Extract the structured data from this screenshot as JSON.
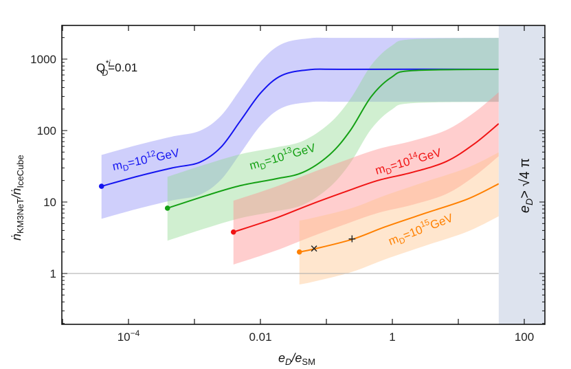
{
  "chart_data": {
    "type": "line",
    "xlabel": {
      "main": "e",
      "sub1": "D",
      "slash": "/e",
      "sub2": "SM"
    },
    "ylabel": {
      "main": "ṅ",
      "sub1": "KM3NeT",
      "slash": "/ṅ",
      "sub2": "IceCube"
    },
    "x_scale": "log",
    "y_scale": "log",
    "xlim": [
      9.8e-06,
      205
    ],
    "ylim": [
      0.195,
      2950
    ],
    "x_ticks": [
      {
        "v": 0.0001,
        "label": "10",
        "exp": "−4"
      },
      {
        "v": 0.01,
        "label": "0.01"
      },
      {
        "v": 1,
        "label": "1"
      },
      {
        "v": 100,
        "label": "100"
      }
    ],
    "y_ticks": [
      {
        "v": 1,
        "label": "1"
      },
      {
        "v": 10,
        "label": "10"
      },
      {
        "v": 100,
        "label": "100"
      },
      {
        "v": 1000,
        "label": "1000"
      }
    ],
    "annotation": {
      "Q": "Q",
      "sub": "D",
      "sup": "*i",
      "value": "=0.01"
    },
    "excluded_region": {
      "x_min": 41,
      "label_main": "e",
      "label_sub": "D",
      "label_rest": "> √4 π",
      "color": "#dde3ee"
    },
    "reference_line": {
      "y": 1,
      "color": "#aaaaaa"
    },
    "series": [
      {
        "name_parts": {
          "m": "m",
          "sub": "D",
          "base": "=10",
          "exp": "12",
          "unit": "GeV"
        },
        "color": "#1414f0",
        "band_color": "#8c8cf5",
        "x": [
          3.9e-05,
          0.00014,
          0.00046,
          0.0012,
          0.0025,
          0.005,
          0.0102,
          0.021,
          0.055,
          0.18,
          41
        ],
        "y": [
          16.6,
          23,
          30,
          36,
          58,
          138,
          340,
          590,
          710,
          720,
          720
        ]
      },
      {
        "name_parts": {
          "m": "m",
          "sub": "D",
          "base": "=10",
          "exp": "13",
          "unit": "GeV"
        },
        "color": "#14a014",
        "band_color": "#8fd88f",
        "x": [
          0.00039,
          0.0015,
          0.005,
          0.0166,
          0.044,
          0.112,
          0.23,
          0.48,
          0.98,
          2.0,
          41
        ],
        "y": [
          8.2,
          12.3,
          17,
          21,
          26,
          46,
          100,
          300,
          560,
          690,
          720
        ]
      },
      {
        "name_parts": {
          "m": "m",
          "sub": "D",
          "base": "=10",
          "exp": "14",
          "unit": "GeV"
        },
        "color": "#f01414",
        "band_color": "#ff8a8a",
        "x": [
          0.0039,
          0.0166,
          0.055,
          0.18,
          0.6,
          2.0,
          6.6,
          17.4,
          41
        ],
        "y": [
          3.8,
          5.9,
          9.1,
          13.6,
          20,
          26,
          37,
          65,
          125
        ]
      },
      {
        "name_parts": {
          "m": "m",
          "sub": "D",
          "base": "=10",
          "exp": "15",
          "unit": "GeV"
        },
        "color": "#ff8000",
        "band_color": "#ffc48a",
        "x": [
          0.039,
          0.065,
          0.245,
          0.78,
          3.2,
          13.8,
          41
        ],
        "y": [
          2.0,
          2.2,
          3.0,
          4.5,
          7.0,
          11,
          18
        ]
      }
    ],
    "band_factor_upper": 2.75,
    "band_factor_lower": 2.85,
    "markers": [
      {
        "symbol": "×",
        "x": 0.065,
        "y": 2.2
      },
      {
        "symbol": "+",
        "x": 0.245,
        "y": 3.0
      }
    ]
  }
}
